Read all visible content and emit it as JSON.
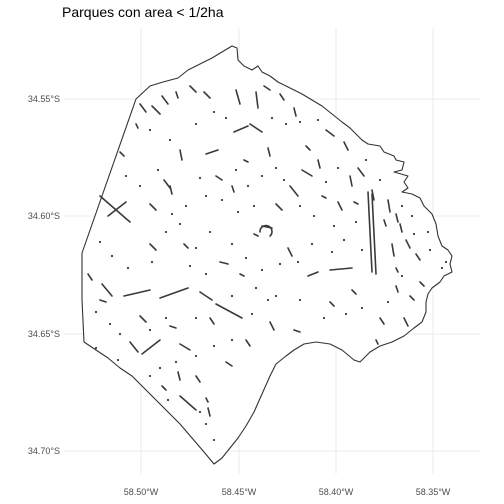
{
  "title": "Parques con area < 1/2ha",
  "colors": {
    "background": "#ffffff",
    "grid": "#ebebeb",
    "boundary": "#333333",
    "parks": "#3a3a3a",
    "axis_text": "#4d4d4d"
  },
  "axes": {
    "y_ticks": [
      {
        "value": -34.55,
        "label": "34.55°S"
      },
      {
        "value": -34.6,
        "label": "34.60°S"
      },
      {
        "value": -34.65,
        "label": "34.65°S"
      },
      {
        "value": -34.7,
        "label": "34.70°S"
      }
    ],
    "x_ticks": [
      {
        "value": -58.5,
        "label": "58.50°W"
      },
      {
        "value": -58.45,
        "label": "58.45°W"
      },
      {
        "value": -58.4,
        "label": "58.40°W"
      },
      {
        "value": -58.35,
        "label": "58.35°W"
      }
    ]
  }
}
